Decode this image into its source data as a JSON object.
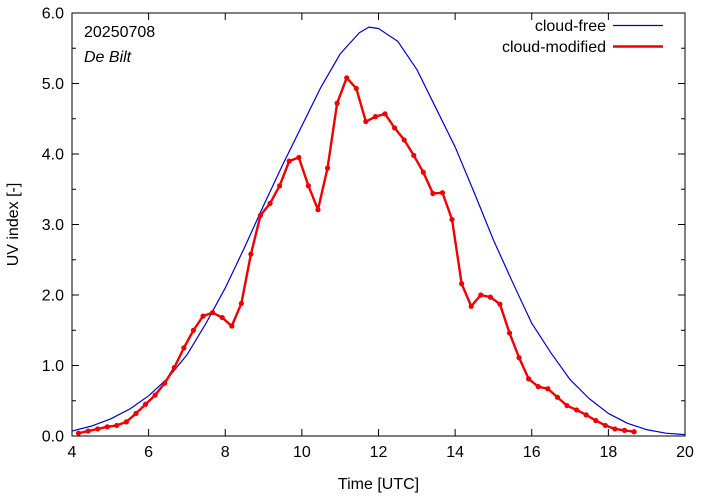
{
  "chart_data": {
    "type": "line",
    "xlabel": "Time  [UTC]",
    "ylabel": "UV index  [-]",
    "xlim": [
      4,
      20
    ],
    "ylim": [
      0,
      6
    ],
    "x_ticks": [
      4,
      6,
      8,
      10,
      12,
      14,
      16,
      18,
      20
    ],
    "y_ticks": [
      0,
      1,
      2,
      3,
      4,
      5,
      6
    ],
    "x_tick_labels": [
      "4",
      "6",
      "8",
      "10",
      "12",
      "14",
      "16",
      "18",
      "20"
    ],
    "y_tick_labels": [
      "0.0",
      "1.0",
      "2.0",
      "3.0",
      "4.0",
      "5.0",
      "6.0"
    ],
    "grid": false,
    "legend_position": "top-right",
    "annotations": {
      "date": "20250708",
      "location": "De Bilt"
    },
    "series": [
      {
        "name": "cloud-free",
        "color": "#0000cc",
        "markers": false,
        "x": [
          4.0,
          4.5,
          5.0,
          5.5,
          6.0,
          6.5,
          7.0,
          7.5,
          8.0,
          8.5,
          9.0,
          9.5,
          10.0,
          10.5,
          11.0,
          11.5,
          11.75,
          12.0,
          12.5,
          13.0,
          13.5,
          14.0,
          14.5,
          15.0,
          15.5,
          16.0,
          16.5,
          17.0,
          17.5,
          18.0,
          18.5,
          19.0,
          19.5,
          20.0
        ],
        "values": [
          0.07,
          0.14,
          0.24,
          0.38,
          0.57,
          0.82,
          1.15,
          1.6,
          2.1,
          2.67,
          3.27,
          3.85,
          4.4,
          4.95,
          5.42,
          5.72,
          5.8,
          5.78,
          5.6,
          5.2,
          4.65,
          4.1,
          3.45,
          2.78,
          2.18,
          1.6,
          1.18,
          0.8,
          0.53,
          0.32,
          0.18,
          0.09,
          0.04,
          0.02
        ]
      },
      {
        "name": "cloud-modified",
        "color": "#ee0000",
        "markers": true,
        "x": [
          4.17,
          4.42,
          4.67,
          4.92,
          5.17,
          5.42,
          5.67,
          5.92,
          6.17,
          6.42,
          6.67,
          6.92,
          7.17,
          7.42,
          7.67,
          7.92,
          8.17,
          8.42,
          8.67,
          8.92,
          9.17,
          9.42,
          9.67,
          9.92,
          10.17,
          10.42,
          10.67,
          10.92,
          11.17,
          11.42,
          11.67,
          11.92,
          12.17,
          12.42,
          12.67,
          12.92,
          13.17,
          13.42,
          13.67,
          13.92,
          14.17,
          14.42,
          14.67,
          14.92,
          15.17,
          15.42,
          15.67,
          15.92,
          16.17,
          16.42,
          16.67,
          16.92,
          17.17,
          17.42,
          17.67,
          17.92,
          18.17,
          18.42,
          18.67
        ],
        "values": [
          0.04,
          0.07,
          0.1,
          0.13,
          0.15,
          0.2,
          0.32,
          0.45,
          0.58,
          0.75,
          0.97,
          1.25,
          1.5,
          1.7,
          1.75,
          1.68,
          1.56,
          1.88,
          2.58,
          3.13,
          3.3,
          3.55,
          3.9,
          3.95,
          3.55,
          3.21,
          3.8,
          4.72,
          5.08,
          4.93,
          4.46,
          4.53,
          4.57,
          4.37,
          4.2,
          3.98,
          3.74,
          3.44,
          3.45,
          3.07,
          2.16,
          1.84,
          2.0,
          1.97,
          1.87,
          1.46,
          1.11,
          0.81,
          0.7,
          0.67,
          0.55,
          0.43,
          0.37,
          0.3,
          0.22,
          0.15,
          0.1,
          0.08,
          0.06
        ]
      }
    ]
  }
}
